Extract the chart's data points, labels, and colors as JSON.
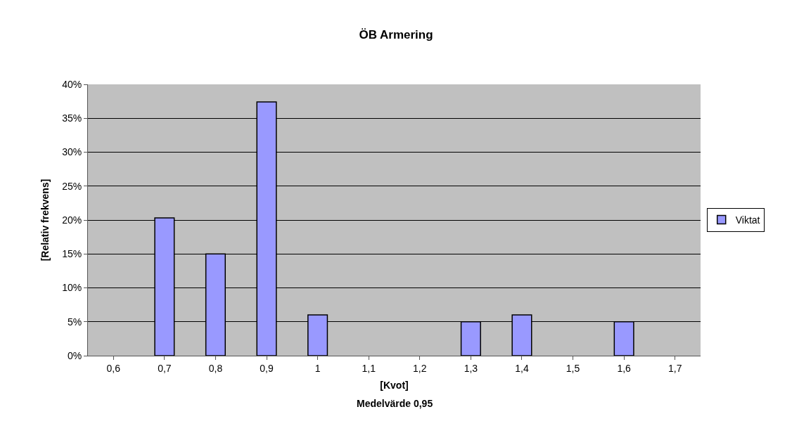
{
  "chart_data": {
    "type": "bar",
    "title": "ÖB Armering",
    "xlabel": "[Kvot]",
    "ylabel": "[Relativ frekvens]",
    "annotations": [
      "Medelvärde 0,95"
    ],
    "categories": [
      "0,6",
      "0,7",
      "0,8",
      "0,9",
      "1",
      "1,1",
      "1,2",
      "1,3",
      "1,4",
      "1,5",
      "1,6",
      "1,7"
    ],
    "series": [
      {
        "name": "Viktat",
        "color": "#9999ff",
        "values": [
          null,
          20.3,
          15,
          37.4,
          6,
          null,
          null,
          5,
          6,
          null,
          5,
          null
        ]
      }
    ],
    "ylim": [
      0,
      40
    ],
    "yticks": [
      {
        "value": 0,
        "label": "0%"
      },
      {
        "value": 5,
        "label": "5%"
      },
      {
        "value": 10,
        "label": "10%"
      },
      {
        "value": 15,
        "label": "15%"
      },
      {
        "value": 20,
        "label": "20%"
      },
      {
        "value": 25,
        "label": "25%"
      },
      {
        "value": 30,
        "label": "30%"
      },
      {
        "value": 35,
        "label": "35%"
      },
      {
        "value": 40,
        "label": "40%"
      }
    ],
    "grid": "y",
    "legend": "right"
  }
}
